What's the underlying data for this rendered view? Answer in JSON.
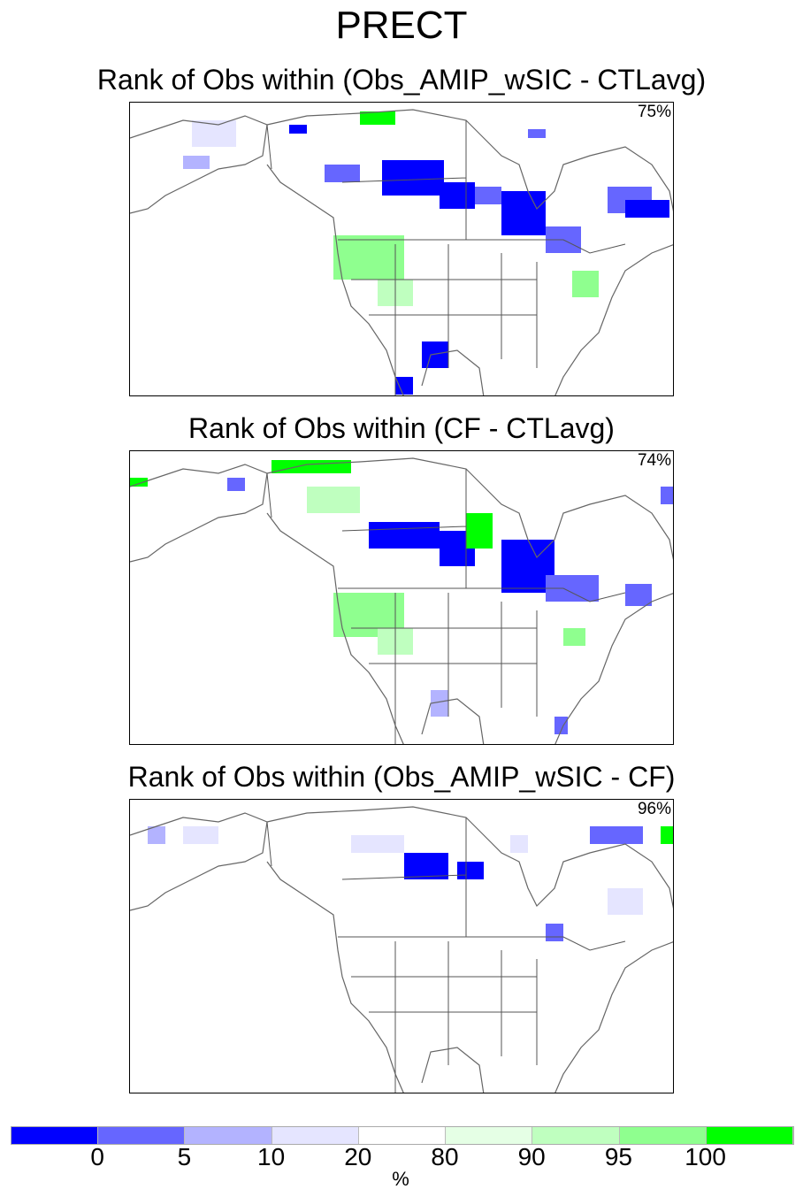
{
  "title": "PRECT",
  "panels": [
    {
      "title": "Rank of Obs within (Obs_AMIP_wSIC - CTLavg)",
      "percent": "75%"
    },
    {
      "title": "Rank of Obs within (CF - CTLavg)",
      "percent": "74%"
    },
    {
      "title": "Rank of Obs within (Obs_AMIP_wSIC - CF)",
      "percent": "96%"
    }
  ],
  "colorbar": {
    "colors": [
      "#0000ff",
      "#6666ff",
      "#b3b3ff",
      "#e5e5ff",
      "#ffffff",
      "#e5ffe5",
      "#bfffbf",
      "#8fff8f",
      "#00ff00"
    ],
    "labels": [
      "0",
      "5",
      "10",
      "20",
      "80",
      "90",
      "95",
      "100"
    ],
    "unit": "%"
  }
}
